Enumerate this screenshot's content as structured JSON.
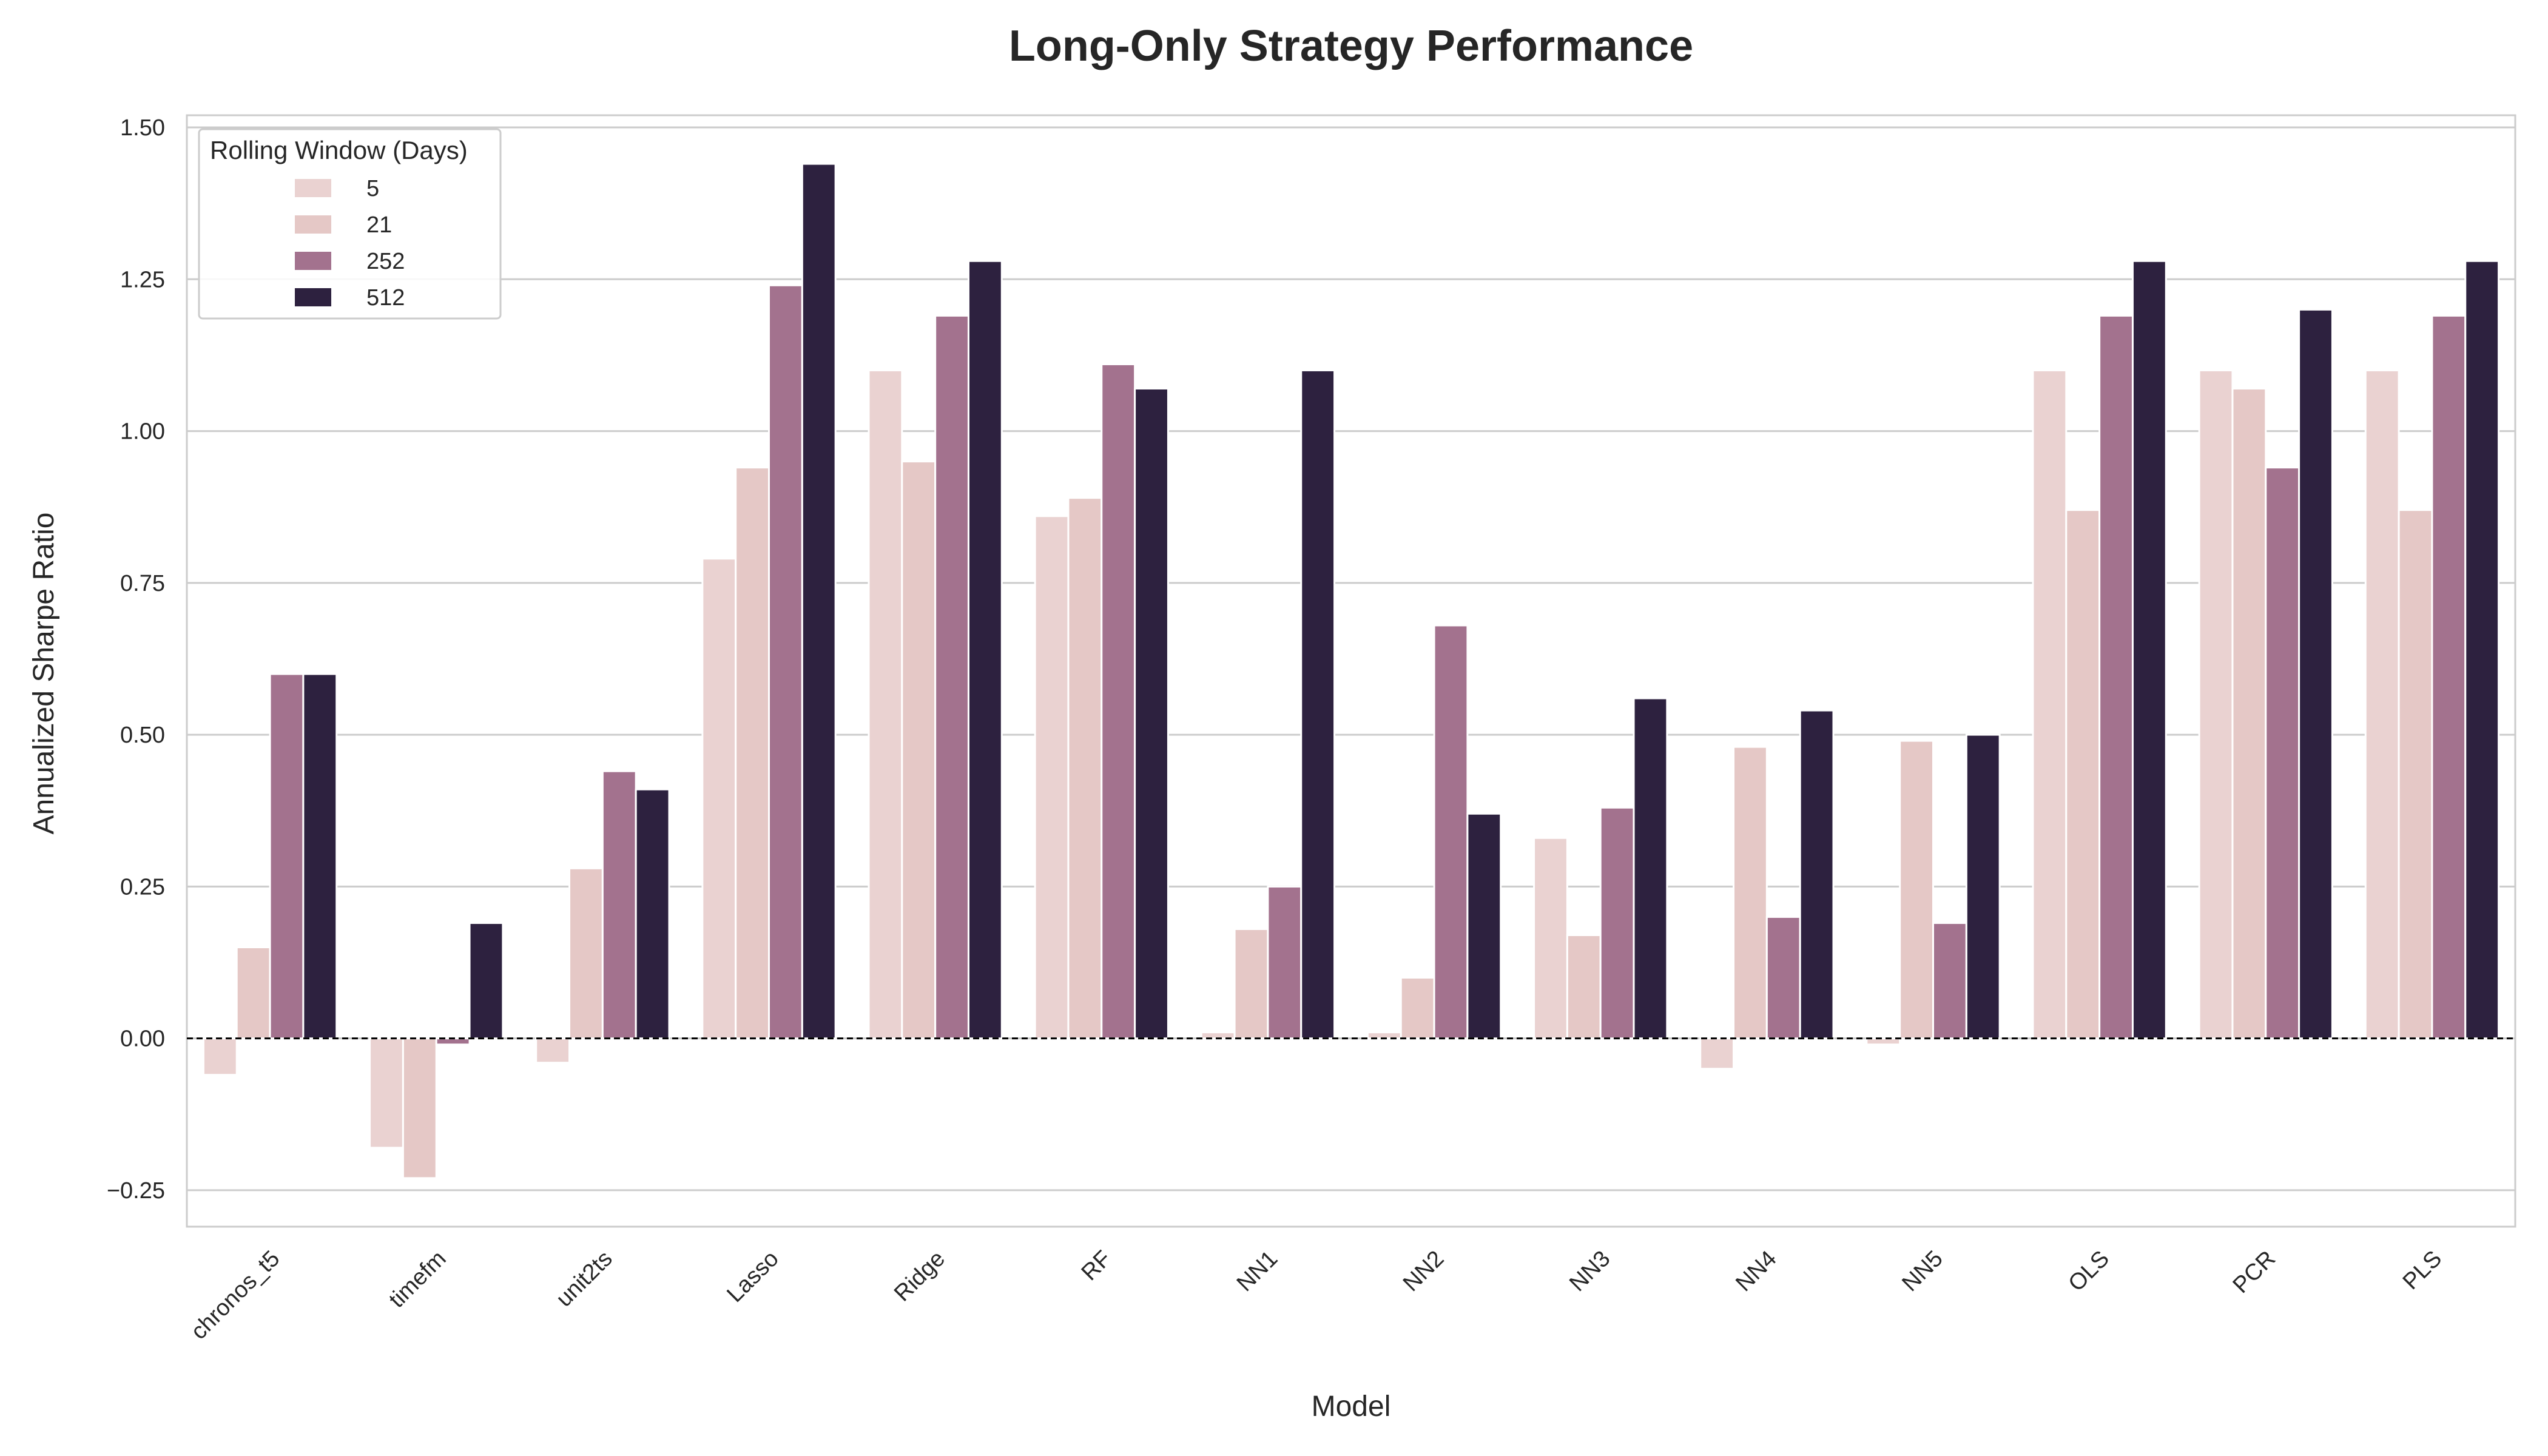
{
  "chart_data": {
    "type": "bar",
    "title": "Long-Only Strategy Performance",
    "xlabel": "Model",
    "ylabel": "Annualized Sharpe Ratio",
    "ylim": [
      -0.31,
      1.52
    ],
    "yticks": [
      -0.25,
      0.0,
      0.25,
      0.5,
      0.75,
      1.0,
      1.25,
      1.5
    ],
    "ytick_labels": [
      "−0.25",
      "0.00",
      "0.25",
      "0.50",
      "0.75",
      "1.00",
      "1.25",
      "1.50"
    ],
    "grid": true,
    "reference_line": 0,
    "categories": [
      "chronos_t5",
      "timefm",
      "unit2ts",
      "Lasso",
      "Ridge",
      "RF",
      "NN1",
      "NN2",
      "NN3",
      "NN4",
      "NN5",
      "OLS",
      "PCR",
      "PLS"
    ],
    "legend": {
      "title": "Rolling Window (Days)",
      "placement": "top-left"
    },
    "series": [
      {
        "name": "5",
        "color": "#ead2d1",
        "values": [
          -0.06,
          -0.18,
          -0.04,
          0.79,
          1.1,
          0.86,
          0.01,
          0.01,
          0.33,
          -0.05,
          -0.01,
          1.1,
          1.1,
          1.1
        ]
      },
      {
        "name": "21",
        "color": "#e5c8c6",
        "values": [
          0.15,
          -0.23,
          0.28,
          0.94,
          0.95,
          0.89,
          0.18,
          0.1,
          0.17,
          0.48,
          0.49,
          0.87,
          1.07,
          0.87
        ]
      },
      {
        "name": "252",
        "color": "#a3728e",
        "values": [
          0.6,
          -0.01,
          0.44,
          1.24,
          1.19,
          1.11,
          0.25,
          0.68,
          0.38,
          0.2,
          0.19,
          1.19,
          0.94,
          1.19
        ]
      },
      {
        "name": "512",
        "color": "#2d213f",
        "values": [
          0.6,
          0.19,
          0.41,
          1.44,
          1.28,
          1.07,
          1.1,
          0.37,
          0.56,
          0.54,
          0.5,
          1.28,
          1.2,
          1.28
        ]
      }
    ]
  }
}
